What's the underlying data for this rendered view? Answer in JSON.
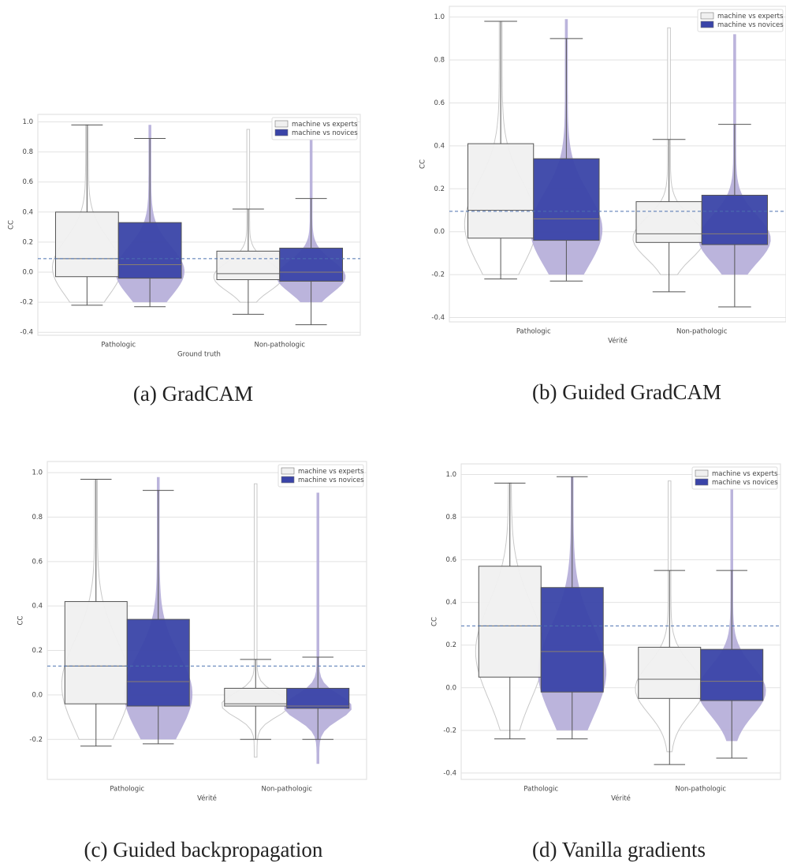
{
  "chart_data": [
    {
      "type": "box",
      "caption": "(a) GradCAM",
      "xlabel": "Ground truth",
      "ylabel": "CC",
      "categories": [
        "Pathologic",
        "Non-pathologic"
      ],
      "ylim": [
        -0.42,
        1.05
      ],
      "yticks": [
        -0.4,
        -0.2,
        {
          "value": 0,
          "label": "0.0"
        },
        0.2,
        0.4,
        0.6,
        0.8,
        {
          "value": 1,
          "label": "1.0"
        }
      ],
      "grid": true,
      "legend": "upper right",
      "reference_line": 0.09,
      "series": [
        {
          "name": "machine vs experts",
          "color": "#f0f0f0",
          "violin_color": "#ffffff",
          "whislo": [
            -0.22,
            -0.28
          ],
          "q1": [
            -0.03,
            -0.05
          ],
          "median": [
            0.09,
            -0.01
          ],
          "q3": [
            0.4,
            0.14
          ],
          "whishi": [
            0.98,
            0.42
          ],
          "violin_min": [
            -0.2,
            -0.2
          ],
          "violin_max": [
            0.98,
            0.95
          ]
        },
        {
          "name": "machine vs novices",
          "color": "#3a44a8",
          "violin_color": "#b4acd8",
          "whislo": [
            -0.23,
            -0.35
          ],
          "q1": [
            -0.04,
            -0.06
          ],
          "median": [
            0.05,
            0.0
          ],
          "q3": [
            0.33,
            0.16
          ],
          "whishi": [
            0.89,
            0.49
          ],
          "violin_min": [
            -0.2,
            -0.2
          ],
          "violin_max": [
            0.98,
            0.92
          ]
        }
      ]
    },
    {
      "type": "box",
      "caption": "(b) Guided GradCAM",
      "xlabel": "Vérité",
      "ylabel": "CC",
      "categories": [
        "Pathologic",
        "Non-pathologic"
      ],
      "ylim": [
        -0.42,
        1.05
      ],
      "yticks": [
        -0.4,
        -0.2,
        {
          "value": 0,
          "label": "0.0"
        },
        0.2,
        0.4,
        0.6,
        0.8,
        {
          "value": 1,
          "label": "1.0"
        }
      ],
      "grid": true,
      "legend": "upper right",
      "reference_line": 0.095,
      "series": [
        {
          "name": "machine vs experts",
          "color": "#f0f0f0",
          "violin_color": "#ffffff",
          "whislo": [
            -0.22,
            -0.28
          ],
          "q1": [
            -0.03,
            -0.05
          ],
          "median": [
            0.1,
            -0.01
          ],
          "q3": [
            0.41,
            0.14
          ],
          "whishi": [
            0.98,
            0.43
          ],
          "violin_min": [
            -0.2,
            -0.2
          ],
          "violin_max": [
            0.98,
            0.95
          ]
        },
        {
          "name": "machine vs novices",
          "color": "#3a44a8",
          "violin_color": "#b4acd8",
          "whislo": [
            -0.23,
            -0.35
          ],
          "q1": [
            -0.04,
            -0.06
          ],
          "median": [
            0.06,
            -0.01
          ],
          "q3": [
            0.34,
            0.17
          ],
          "whishi": [
            0.9,
            0.5
          ],
          "violin_min": [
            -0.2,
            -0.2
          ],
          "violin_max": [
            0.99,
            0.92
          ]
        }
      ]
    },
    {
      "type": "box",
      "caption": "(c) Guided backpropagation",
      "xlabel": "Vérité",
      "ylabel": "CC",
      "categories": [
        "Pathologic",
        "Non-pathologic"
      ],
      "ylim": [
        -0.38,
        1.05
      ],
      "yticks": [
        -0.2,
        {
          "value": 0,
          "label": "0.0"
        },
        0.2,
        0.4,
        0.6,
        0.8,
        {
          "value": 1,
          "label": "1.0"
        }
      ],
      "grid": true,
      "legend": "upper right",
      "reference_line": 0.13,
      "series": [
        {
          "name": "machine vs experts",
          "color": "#f0f0f0",
          "violin_color": "#ffffff",
          "whislo": [
            -0.23,
            -0.2
          ],
          "q1": [
            -0.04,
            -0.05
          ],
          "median": [
            0.13,
            -0.04
          ],
          "q3": [
            0.42,
            0.03
          ],
          "whishi": [
            0.97,
            0.16
          ],
          "violin_min": [
            -0.2,
            -0.28
          ],
          "violin_max": [
            0.97,
            0.95
          ]
        },
        {
          "name": "machine vs novices",
          "color": "#3a44a8",
          "violin_color": "#b4acd8",
          "whislo": [
            -0.22,
            -0.2
          ],
          "q1": [
            -0.05,
            -0.06
          ],
          "median": [
            0.06,
            -0.05
          ],
          "q3": [
            0.34,
            0.03
          ],
          "whishi": [
            0.92,
            0.17
          ],
          "violin_min": [
            -0.2,
            -0.31
          ],
          "violin_max": [
            0.98,
            0.91
          ]
        }
      ]
    },
    {
      "type": "box",
      "caption": "(d) Vanilla gradients",
      "xlabel": "Vérité",
      "ylabel": "CC",
      "categories": [
        "Pathologic",
        "Non-pathologic"
      ],
      "ylim": [
        -0.43,
        1.05
      ],
      "yticks": [
        -0.4,
        -0.2,
        {
          "value": 0,
          "label": "0.0"
        },
        0.2,
        0.4,
        0.6,
        0.8,
        {
          "value": 1,
          "label": "1.0"
        }
      ],
      "grid": true,
      "legend": "upper right",
      "reference_line": 0.29,
      "series": [
        {
          "name": "machine vs experts",
          "color": "#f0f0f0",
          "violin_color": "#ffffff",
          "whislo": [
            -0.24,
            -0.36
          ],
          "q1": [
            0.05,
            -0.05
          ],
          "median": [
            0.29,
            0.04
          ],
          "q3": [
            0.57,
            0.19
          ],
          "whishi": [
            0.96,
            0.55
          ],
          "violin_min": [
            -0.2,
            -0.3
          ],
          "violin_max": [
            0.96,
            0.97
          ]
        },
        {
          "name": "machine vs novices",
          "color": "#3a44a8",
          "violin_color": "#b4acd8",
          "whislo": [
            -0.24,
            -0.33
          ],
          "q1": [
            -0.02,
            -0.06
          ],
          "median": [
            0.17,
            0.03
          ],
          "q3": [
            0.47,
            0.18
          ],
          "whishi": [
            0.99,
            0.55
          ],
          "violin_min": [
            -0.2,
            -0.25
          ],
          "violin_max": [
            0.99,
            0.95
          ]
        }
      ]
    }
  ]
}
